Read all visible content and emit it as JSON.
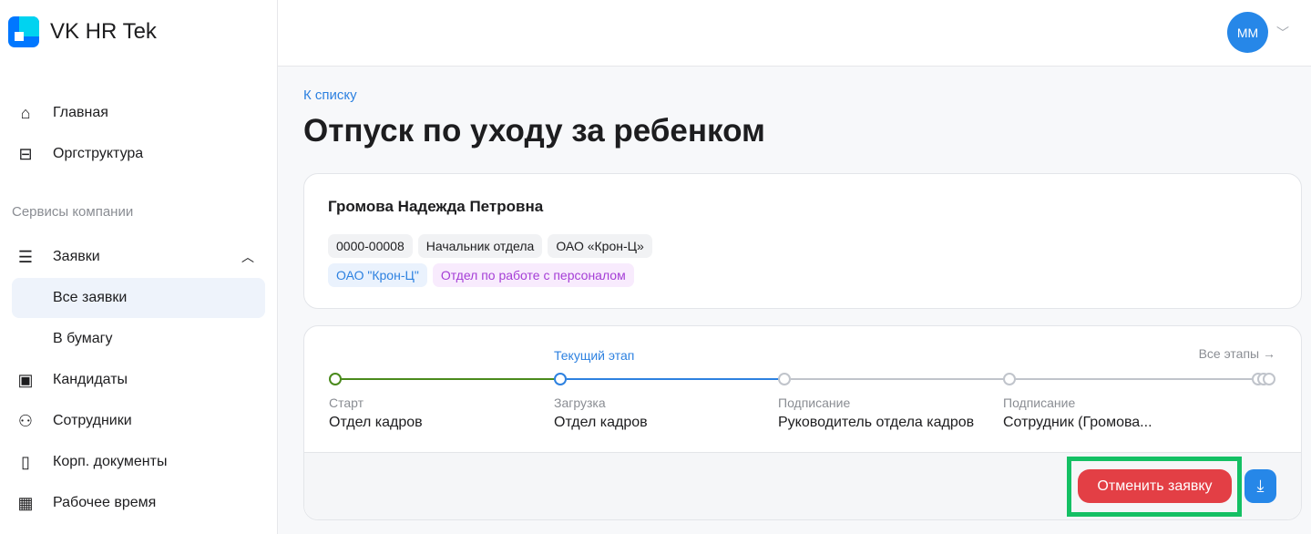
{
  "app": {
    "name": "VK HR Tek"
  },
  "sidebar": {
    "items": [
      {
        "label": "Главная",
        "icon": "home-icon"
      },
      {
        "label": "Оргструктура",
        "icon": "briefcase-icon"
      }
    ],
    "section": "Сервисы компании",
    "services": [
      {
        "label": "Заявки",
        "icon": "list-icon",
        "expanded": true
      },
      {
        "label": "Все заявки",
        "active": true
      },
      {
        "label": "В бумагу"
      },
      {
        "label": "Кандидаты",
        "icon": "contact-icon"
      },
      {
        "label": "Сотрудники",
        "icon": "users-icon"
      },
      {
        "label": "Корп. документы",
        "icon": "document-icon"
      },
      {
        "label": "Рабочее время",
        "icon": "calendar-icon"
      }
    ]
  },
  "header": {
    "avatar": "ММ"
  },
  "page": {
    "back": "К списку",
    "title": "Отпуск по уходу за ребенком"
  },
  "employee": {
    "name": "Громова Надежда Петровна",
    "tags": [
      "0000-00008",
      "Начальник отдела",
      "ОАО «Крон-Ц»"
    ],
    "org": "ОАО \"Крон-Ц\"",
    "department": "Отдел по работе с персоналом"
  },
  "stages": {
    "current_label": "Текущий этап",
    "all_label": "Все этапы →",
    "items": [
      {
        "kind": "Старт",
        "who": "Отдел кадров",
        "status": "done"
      },
      {
        "kind": "Загрузка",
        "who": "Отдел кадров",
        "status": "current"
      },
      {
        "kind": "Подписание",
        "who": "Руководитель отдела кадров",
        "status": "pending"
      },
      {
        "kind": "Подписание",
        "who": "Сотрудник (Громова...",
        "status": "pending"
      }
    ]
  },
  "actions": {
    "cancel": "Отменить заявку",
    "download_icon": "download-icon"
  },
  "colors": {
    "accent": "#2d81e0",
    "danger": "#e33f45",
    "done": "#4a8a1c",
    "highlight": "#14c064"
  }
}
